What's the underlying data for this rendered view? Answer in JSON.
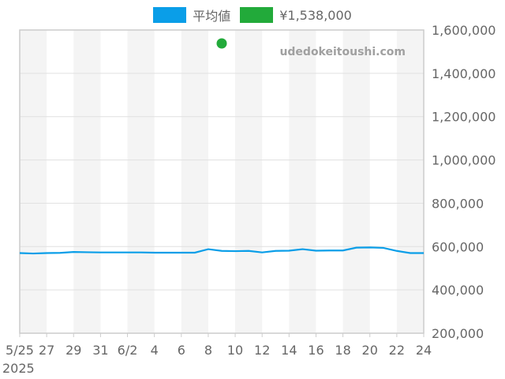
{
  "chart_data": {
    "type": "line",
    "title": "",
    "watermark": "udedokeitoushi.com",
    "xlabel": "",
    "ylabel": "",
    "ylim": [
      200000,
      1600000
    ],
    "y_ticks": [
      200000,
      400000,
      600000,
      800000,
      1000000,
      1200000,
      1400000,
      1600000
    ],
    "y_tick_labels": [
      "200,000",
      "400,000",
      "600,000",
      "800,000",
      "1,000,000",
      "1,200,000",
      "1,400,000",
      "1,600,000"
    ],
    "x_tick_labels": [
      "5/25",
      "27",
      "29",
      "31",
      "6/2",
      "4",
      "6",
      "8",
      "10",
      "12",
      "14",
      "16",
      "18",
      "20",
      "22",
      "24"
    ],
    "x_year_label": "2025",
    "x_range_days": [
      0,
      30
    ],
    "grid": true,
    "legend_position": "top",
    "series": [
      {
        "name": "平均値",
        "color": "#0a9ee8",
        "type": "line",
        "x_days": [
          0,
          1,
          2,
          3,
          4,
          5,
          6,
          7,
          8,
          9,
          10,
          11,
          12,
          13,
          14,
          15,
          16,
          17,
          18,
          19,
          20,
          21,
          22,
          23,
          24,
          25,
          26,
          27,
          28,
          29,
          30
        ],
        "values": [
          570000,
          568000,
          570000,
          571000,
          575000,
          574000,
          573000,
          573000,
          573000,
          573000,
          572000,
          572000,
          572000,
          572000,
          588000,
          580000,
          579000,
          580000,
          573000,
          580000,
          581000,
          588000,
          581000,
          582000,
          582000,
          595000,
          596000,
          594000,
          580000,
          570000,
          570000
        ]
      },
      {
        "name": "¥1,538,000",
        "color": "#22aa3a",
        "type": "scatter",
        "x_days": [
          15
        ],
        "values": [
          1538000
        ]
      }
    ]
  },
  "legend": {
    "items": [
      {
        "label": "平均値",
        "color": "#0a9ee8"
      },
      {
        "label": "¥1,538,000",
        "color": "#22aa3a"
      }
    ]
  }
}
